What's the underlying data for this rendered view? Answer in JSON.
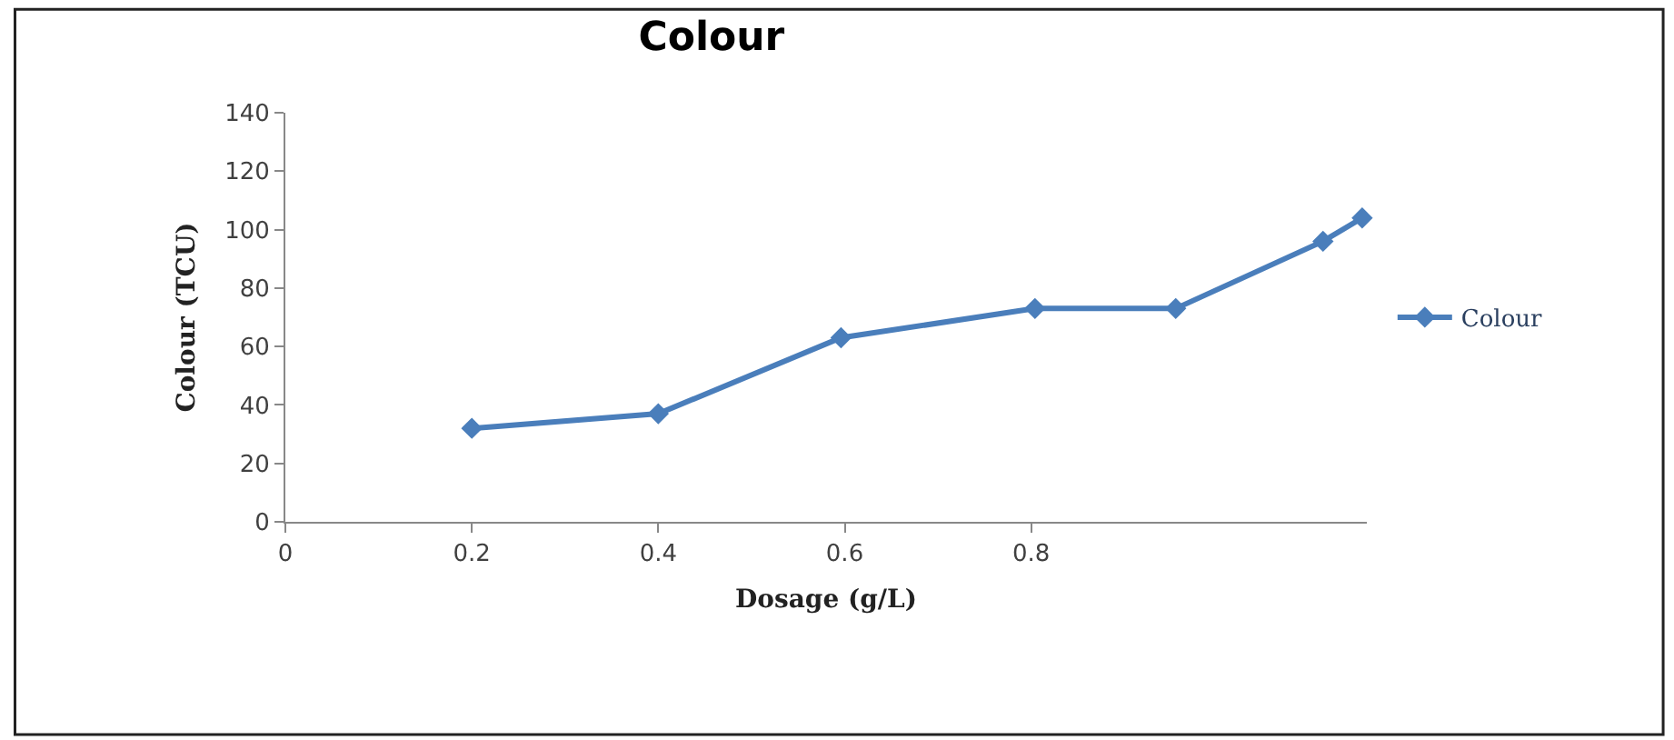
{
  "chart_data": {
    "type": "line",
    "title": "Colour",
    "xlabel": "Dosage (g/L)",
    "ylabel": "Colour (TCU)",
    "x": [
      0.2,
      0.4,
      0.596,
      0.804,
      0.955,
      1.113,
      1.155
    ],
    "series": [
      {
        "name": "Colour",
        "color": "#4a7ebb",
        "values": [
          32,
          37,
          63,
          73,
          73,
          96,
          104
        ]
      }
    ],
    "xlim": [
      0,
      1.16
    ],
    "xticks": [
      0,
      0.2,
      0.4,
      0.6,
      0.8
    ],
    "ylim": [
      0,
      140
    ],
    "yticks": [
      0,
      20,
      40,
      60,
      80,
      100,
      120,
      140
    ],
    "legend": "right",
    "marker": "diamond",
    "line_style": "solid"
  }
}
